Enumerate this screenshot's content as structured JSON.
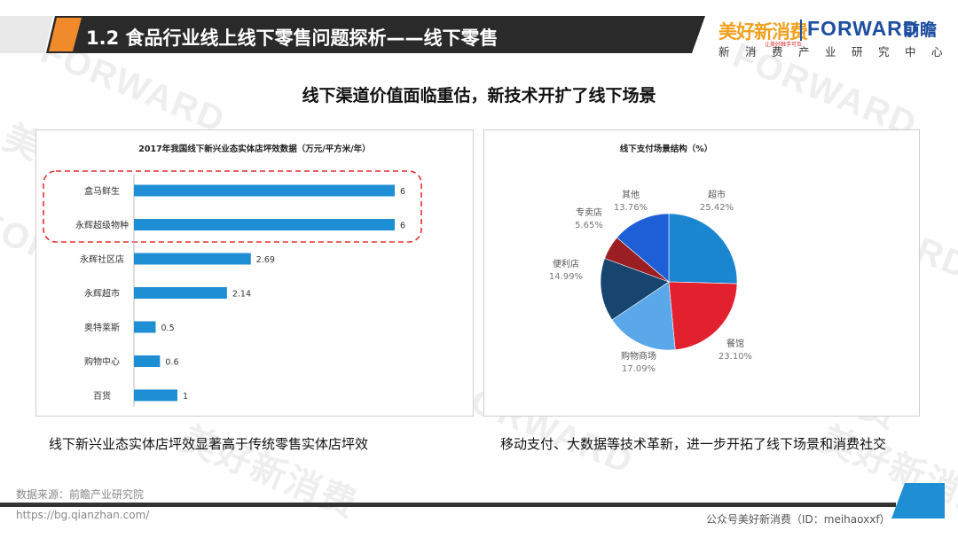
{
  "header": {
    "title": "1.2 食品行业线上线下零售问题探析——线下零售"
  },
  "logo": {
    "cn": "美好新消费",
    "cn_sub": "让美好触手可及",
    "en": "FORWARD",
    "en_cn": "前瞻",
    "tagline": "新消费产业研究中心"
  },
  "subtitle": "线下渠道价值面临重估，新技术开扩了线下场景",
  "chart_data": [
    {
      "type": "bar",
      "orientation": "horizontal",
      "title": "2017年我国线下新兴业态实体店坪效数据（万元/平方米/年）",
      "categories": [
        "盒马鲜生",
        "永辉超级物种",
        "永辉社区店",
        "永辉超市",
        "奥特莱斯",
        "购物中心",
        "百货"
      ],
      "values": [
        6,
        6,
        2.69,
        2.14,
        0.5,
        0.6,
        1
      ],
      "value_labels": [
        "6",
        "6",
        "2.69",
        "2.14",
        "0.5",
        "0.6",
        "1"
      ],
      "xlim": [
        0,
        6.5
      ],
      "highlighted_categories": [
        "盒马鲜生",
        "永辉超级物种"
      ],
      "bar_color": "#1e8fd4",
      "highlight_color": "#e03030",
      "grid": false
    },
    {
      "type": "pie",
      "title": "线下支付场景结构（%）",
      "slices": [
        {
          "label": "超市",
          "value": 25.42,
          "value_label": "25.42%",
          "color": "#1a86d0"
        },
        {
          "label": "餐馆",
          "value": 23.1,
          "value_label": "23.10%",
          "color": "#e2202e"
        },
        {
          "label": "购物商场",
          "value": 17.09,
          "value_label": "17.09%",
          "color": "#5aa8ea"
        },
        {
          "label": "便利店",
          "value": 14.99,
          "value_label": "14.99%",
          "color": "#17456f"
        },
        {
          "label": "专卖店",
          "value": 5.65,
          "value_label": "5.65%",
          "color": "#9a1e22"
        },
        {
          "label": "其他",
          "value": 13.76,
          "value_label": "13.76%",
          "color": "#1e5fd8"
        }
      ],
      "start_angle_deg": 0,
      "direction": "clockwise"
    }
  ],
  "captions": {
    "left": "线下新兴业态实体店坪效显著高于传统零售实体店坪效",
    "right": "移动支付、大数据等技术革新，进一步开拓了线下场景和消费社交"
  },
  "footer": {
    "source": "数据来源：前瞻产业研究院",
    "url": "https://bg.qianzhan.com/",
    "right": "公众号美好新消费（ID：meihaoxxf）"
  },
  "watermark": {
    "en": "FORWARD",
    "cn": "前瞻",
    "brand": "美好新消费"
  }
}
